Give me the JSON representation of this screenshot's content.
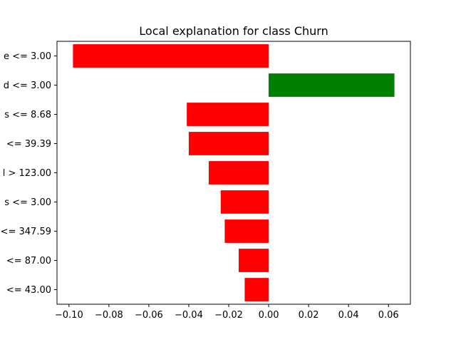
{
  "chart_data": {
    "type": "bar",
    "orientation": "horizontal",
    "title": "Local explanation for class Churn",
    "xlabel": "",
    "ylabel": "",
    "categories": [
      "e <= 3.00",
      "d <= 3.00",
      "s <= 8.68",
      "<= 39.39",
      "l > 123.00",
      "s <= 3.00",
      "<= 347.59",
      "<= 87.00",
      "<= 43.00"
    ],
    "values": [
      -0.098,
      0.063,
      -0.041,
      -0.04,
      -0.03,
      -0.024,
      -0.022,
      -0.015,
      -0.012
    ],
    "xlim": [
      -0.106,
      0.071
    ],
    "xticks": [
      -0.1,
      -0.08,
      -0.06,
      -0.04,
      -0.02,
      0.0,
      0.02,
      0.04,
      0.06
    ],
    "xtick_labels": [
      "−0.10",
      "−0.08",
      "−0.06",
      "−0.04",
      "−0.02",
      "0.00",
      "0.02",
      "0.04",
      "0.06"
    ],
    "colors": {
      "positive": "#008000",
      "negative": "#ff0000"
    },
    "grid": false,
    "legend": "none"
  }
}
